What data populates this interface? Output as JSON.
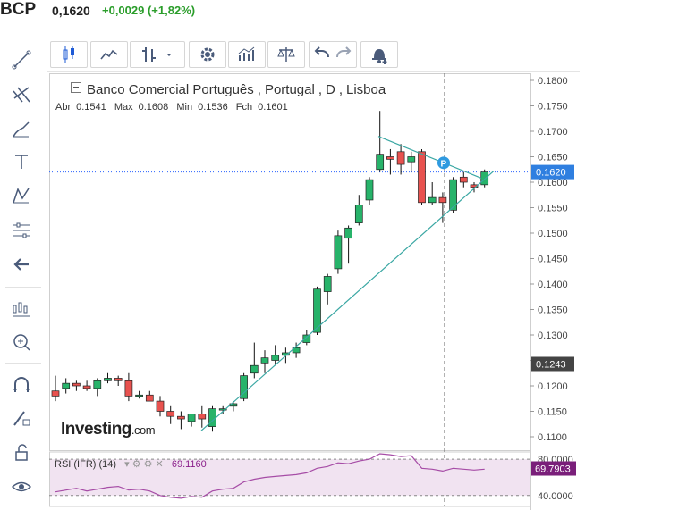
{
  "ticker": {
    "symbol": "BCP",
    "price": "0,1620",
    "change": "+0,0029 (+1,82%)"
  },
  "legend": {
    "name": "Banco Comercial Português",
    "country": "Portugal",
    "interval": "D",
    "exchange": "Lisboa",
    "open_label": "Abr",
    "open": "0.1541",
    "high_label": "Max",
    "high": "0.1608",
    "low_label": "Min",
    "low": "0.1536",
    "close_label": "Fch",
    "close": "0.1601"
  },
  "rsi": {
    "label": "RSI (IFR) (14)",
    "value": "69.1160",
    "axis_labels": [
      "80.0000",
      "40.0000"
    ],
    "current_label": "69.7903",
    "current": 69.7903
  },
  "brand": {
    "logo_main": "Investing",
    "logo_suffix": ".com"
  },
  "colors": {
    "up": "#27b36a",
    "down": "#e8524f",
    "trend": "#3aa7a3",
    "price_line": "#2962ff",
    "rsi_line": "#a64ca6",
    "rsi_band": "#f1e3f1"
  },
  "icons": [
    "trend-line-icon",
    "fib-icon",
    "brush-icon",
    "text-icon",
    "pattern-icon",
    "measure-icon",
    "back-arrow-icon",
    "chart-type-icon",
    "zoom-icon",
    "magnet-icon",
    "lock-icon",
    "eye-icon"
  ],
  "chart_data": {
    "type": "candlestick",
    "y_ticks": [
      "0.1800",
      "0.1750",
      "0.1700",
      "0.1650",
      "0.1600",
      "0.1550",
      "0.1500",
      "0.1450",
      "0.1400",
      "0.1350",
      "0.1300",
      "0.1250",
      "0.1200",
      "0.1150",
      "0.1100"
    ],
    "ylim": [
      0.1075,
      0.181
    ],
    "current_price": 0.162,
    "current_price_label": "0.1620",
    "marker_price": 0.1243,
    "marker_price_label": "0.1243",
    "candles": [
      {
        "o": 0.119,
        "h": 0.122,
        "l": 0.117,
        "c": 0.118
      },
      {
        "o": 0.1195,
        "h": 0.1215,
        "l": 0.1185,
        "c": 0.1205
      },
      {
        "o": 0.1205,
        "h": 0.121,
        "l": 0.119,
        "c": 0.12
      },
      {
        "o": 0.12,
        "h": 0.121,
        "l": 0.119,
        "c": 0.1195
      },
      {
        "o": 0.1195,
        "h": 0.1215,
        "l": 0.118,
        "c": 0.121
      },
      {
        "o": 0.121,
        "h": 0.1225,
        "l": 0.1205,
        "c": 0.1215
      },
      {
        "o": 0.1215,
        "h": 0.122,
        "l": 0.12,
        "c": 0.121
      },
      {
        "o": 0.121,
        "h": 0.1225,
        "l": 0.117,
        "c": 0.118
      },
      {
        "o": 0.118,
        "h": 0.119,
        "l": 0.1175,
        "c": 0.1182
      },
      {
        "o": 0.1182,
        "h": 0.119,
        "l": 0.117,
        "c": 0.117
      },
      {
        "o": 0.117,
        "h": 0.118,
        "l": 0.114,
        "c": 0.115
      },
      {
        "o": 0.115,
        "h": 0.116,
        "l": 0.1125,
        "c": 0.114
      },
      {
        "o": 0.114,
        "h": 0.115,
        "l": 0.1115,
        "c": 0.1135
      },
      {
        "o": 0.113,
        "h": 0.1145,
        "l": 0.112,
        "c": 0.1145
      },
      {
        "o": 0.1145,
        "h": 0.116,
        "l": 0.1118,
        "c": 0.1135
      },
      {
        "o": 0.112,
        "h": 0.116,
        "l": 0.111,
        "c": 0.1155
      },
      {
        "o": 0.1155,
        "h": 0.116,
        "l": 0.1145,
        "c": 0.1155
      },
      {
        "o": 0.116,
        "h": 0.117,
        "l": 0.115,
        "c": 0.1165
      },
      {
        "o": 0.1175,
        "h": 0.1225,
        "l": 0.117,
        "c": 0.122
      },
      {
        "o": 0.1225,
        "h": 0.1285,
        "l": 0.1215,
        "c": 0.124
      },
      {
        "o": 0.1245,
        "h": 0.127,
        "l": 0.1225,
        "c": 0.1255
      },
      {
        "o": 0.125,
        "h": 0.128,
        "l": 0.124,
        "c": 0.126
      },
      {
        "o": 0.126,
        "h": 0.1275,
        "l": 0.1245,
        "c": 0.1265
      },
      {
        "o": 0.1265,
        "h": 0.1285,
        "l": 0.1255,
        "c": 0.1275
      },
      {
        "o": 0.1285,
        "h": 0.131,
        "l": 0.128,
        "c": 0.13
      },
      {
        "o": 0.1305,
        "h": 0.1395,
        "l": 0.13,
        "c": 0.139
      },
      {
        "o": 0.1385,
        "h": 0.142,
        "l": 0.136,
        "c": 0.1415
      },
      {
        "o": 0.143,
        "h": 0.1505,
        "l": 0.142,
        "c": 0.1495
      },
      {
        "o": 0.149,
        "h": 0.1515,
        "l": 0.144,
        "c": 0.151
      },
      {
        "o": 0.152,
        "h": 0.1575,
        "l": 0.1515,
        "c": 0.1555
      },
      {
        "o": 0.1565,
        "h": 0.161,
        "l": 0.1555,
        "c": 0.1605
      },
      {
        "o": 0.1625,
        "h": 0.174,
        "l": 0.162,
        "c": 0.1655
      },
      {
        "o": 0.165,
        "h": 0.1665,
        "l": 0.1615,
        "c": 0.1645
      },
      {
        "o": 0.166,
        "h": 0.1675,
        "l": 0.1615,
        "c": 0.1635
      },
      {
        "o": 0.164,
        "h": 0.166,
        "l": 0.162,
        "c": 0.165
      },
      {
        "o": 0.166,
        "h": 0.1665,
        "l": 0.1555,
        "c": 0.156
      },
      {
        "o": 0.156,
        "h": 0.16,
        "l": 0.1555,
        "c": 0.157
      },
      {
        "o": 0.157,
        "h": 0.158,
        "l": 0.152,
        "c": 0.156
      },
      {
        "o": 0.1545,
        "h": 0.161,
        "l": 0.154,
        "c": 0.1605
      },
      {
        "o": 0.161,
        "h": 0.162,
        "l": 0.159,
        "c": 0.16
      },
      {
        "o": 0.1595,
        "h": 0.16,
        "l": 0.158,
        "c": 0.159
      },
      {
        "o": 0.1595,
        "h": 0.1625,
        "l": 0.159,
        "c": 0.162
      }
    ],
    "rsi_series": [
      44,
      46,
      48,
      45,
      47,
      49,
      50,
      46,
      47,
      45,
      40,
      38,
      37,
      39,
      38,
      45,
      47,
      48,
      55,
      58,
      60,
      61,
      62,
      63,
      65,
      70,
      72,
      76,
      75,
      78,
      80,
      86,
      85,
      83,
      84,
      70,
      69,
      67,
      70,
      69,
      68,
      69
    ]
  }
}
